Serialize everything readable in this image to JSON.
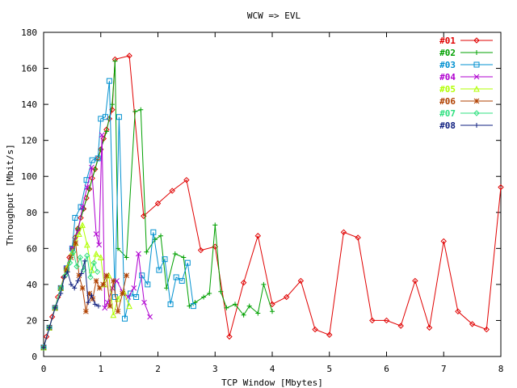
{
  "chart_data": {
    "type": "line",
    "title": "WCW => EVL",
    "xlabel": "TCP Window [Mbytes]",
    "ylabel": "Throughput [Mbit/s]",
    "xlim": [
      0,
      8
    ],
    "ylim": [
      0,
      180
    ],
    "xticks": [
      0,
      1,
      2,
      3,
      4,
      5,
      6,
      7,
      8
    ],
    "yticks": [
      0,
      20,
      40,
      60,
      80,
      100,
      120,
      140,
      160,
      180
    ],
    "grid": false,
    "legend_position": "top-right",
    "series": [
      {
        "name": "#01",
        "color": "#e00000",
        "marker": "diamond",
        "x": [
          0,
          0.05,
          0.1,
          0.15,
          0.2,
          0.25,
          0.3,
          0.35,
          0.4,
          0.45,
          0.5,
          0.55,
          0.6,
          0.65,
          0.7,
          0.75,
          0.8,
          0.85,
          0.9,
          0.95,
          1.0,
          1.05,
          1.1,
          1.15,
          1.2,
          1.25,
          1.5,
          1.75,
          2.0,
          2.25,
          2.5,
          2.75,
          3.0,
          3.25,
          3.5,
          3.75,
          4.0,
          4.25,
          4.5,
          4.75,
          5.0,
          5.25,
          5.5,
          5.75,
          6.0,
          6.25,
          6.5,
          6.75,
          7.0,
          7.25,
          7.5,
          7.75,
          8.0
        ],
        "y": [
          5,
          11,
          16,
          22,
          27,
          33,
          38,
          44,
          49,
          55,
          60,
          66,
          71,
          77,
          82,
          88,
          93,
          99,
          104,
          110,
          115,
          121,
          126,
          132,
          137,
          165,
          167,
          78,
          85,
          92,
          98,
          59,
          61,
          11,
          41,
          67,
          29,
          33,
          42,
          15,
          12,
          69,
          66,
          20,
          20,
          17,
          42,
          16,
          64,
          25,
          18,
          15,
          94
        ]
      },
      {
        "name": "#02",
        "color": "#00a000",
        "marker": "plus",
        "x": [
          0,
          0.1,
          0.2,
          0.3,
          0.4,
          0.5,
          0.6,
          0.7,
          0.8,
          0.9,
          1.0,
          1.1,
          1.2,
          1.25,
          1.3,
          1.45,
          1.6,
          1.7,
          1.8,
          1.95,
          2.05,
          2.15,
          2.3,
          2.45,
          2.55,
          2.65,
          2.8,
          2.9,
          3.0,
          3.1,
          3.2,
          3.35,
          3.5,
          3.6,
          3.75,
          3.85,
          4.0
        ],
        "y": [
          5,
          16,
          27,
          38,
          49,
          60,
          71,
          82,
          93,
          104,
          115,
          125,
          140,
          164,
          60,
          55,
          136,
          137,
          58,
          65,
          67,
          38,
          57,
          55,
          28,
          30,
          33,
          35,
          73,
          36,
          27,
          29,
          23,
          28,
          24,
          40,
          25
        ]
      },
      {
        "name": "#03",
        "color": "#0090d0",
        "marker": "square",
        "x": [
          0,
          0.1,
          0.2,
          0.3,
          0.4,
          0.5,
          0.55,
          0.65,
          0.75,
          0.85,
          0.95,
          1.0,
          1.08,
          1.15,
          1.25,
          1.32,
          1.42,
          1.52,
          1.62,
          1.72,
          1.82,
          1.92,
          2.02,
          2.12,
          2.22,
          2.32,
          2.42,
          2.52,
          2.62
        ],
        "y": [
          5,
          16,
          27,
          38,
          49,
          60,
          77,
          83,
          98,
          109,
          110,
          132,
          133,
          153,
          33,
          133,
          21,
          35,
          33,
          45,
          40,
          69,
          48,
          54,
          29,
          44,
          42,
          52,
          28
        ]
      },
      {
        "name": "#04",
        "color": "#b000d0",
        "marker": "cross",
        "x": [
          0,
          0.1,
          0.2,
          0.3,
          0.4,
          0.5,
          0.6,
          0.68,
          0.76,
          0.84,
          0.92,
          0.97,
          1.02,
          1.07,
          1.12,
          1.2,
          1.28,
          1.38,
          1.48,
          1.58,
          1.66,
          1.76,
          1.86
        ],
        "y": [
          5,
          16,
          27,
          38,
          49,
          60,
          69,
          83,
          94,
          105,
          68,
          62,
          123,
          27,
          30,
          38,
          42,
          36,
          33,
          38,
          57,
          30,
          22
        ]
      },
      {
        "name": "#05",
        "color": "#b0ff00",
        "marker": "triangle",
        "x": [
          0,
          0.1,
          0.2,
          0.3,
          0.4,
          0.5,
          0.56,
          0.62,
          0.68,
          0.76,
          0.84,
          0.92,
          1.0,
          1.06,
          1.14,
          1.22,
          1.3,
          1.4,
          1.5
        ],
        "y": [
          5,
          16,
          27,
          38,
          49,
          58,
          63,
          68,
          73,
          62,
          48,
          57,
          55,
          40,
          45,
          23,
          32,
          36,
          28
        ]
      },
      {
        "name": "#06",
        "color": "#b04000",
        "marker": "star",
        "x": [
          0,
          0.1,
          0.2,
          0.3,
          0.4,
          0.48,
          0.56,
          0.62,
          0.68,
          0.74,
          0.8,
          0.86,
          0.92,
          0.98,
          1.04,
          1.1,
          1.16,
          1.22,
          1.3,
          1.38,
          1.45
        ],
        "y": [
          5,
          16,
          27,
          38,
          48,
          55,
          63,
          45,
          38,
          25,
          35,
          32,
          42,
          38,
          40,
          45,
          28,
          42,
          25,
          35,
          45
        ]
      },
      {
        "name": "#07",
        "color": "#30e080",
        "marker": "diamond",
        "x": [
          0,
          0.1,
          0.2,
          0.3,
          0.38,
          0.46,
          0.52,
          0.58,
          0.64,
          0.7,
          0.76,
          0.82,
          0.88,
          0.94
        ],
        "y": [
          5,
          16,
          27,
          38,
          45,
          52,
          58,
          50,
          55,
          48,
          56,
          44,
          52,
          47
        ]
      },
      {
        "name": "#08",
        "color": "#102080",
        "marker": "plus",
        "x": [
          0,
          0.1,
          0.2,
          0.3,
          0.36,
          0.42,
          0.48,
          0.54,
          0.6,
          0.66,
          0.72,
          0.78,
          0.84,
          0.9,
          0.96
        ],
        "y": [
          5,
          16,
          27,
          35,
          44,
          47,
          40,
          38,
          42,
          46,
          53,
          30,
          34,
          29,
          28
        ]
      }
    ]
  }
}
